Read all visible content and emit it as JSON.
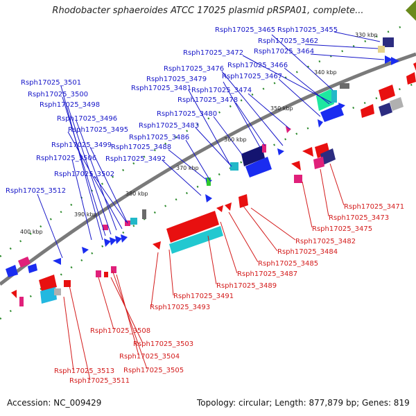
{
  "title": "Rhodobacter sphaeroides ATCC 17025 plasmid pRSPA01, complete...",
  "footer": {
    "accession": "Accession: NC_009429",
    "summary": "Topology: circular; Length: 877,879 bp; Genes: 819"
  },
  "kbp_ticks": [
    "330 kbp",
    "340 kbp",
    "350 kbp",
    "360 kbp",
    "370 kbp",
    "380 kbp",
    "390 kbp",
    "400 kbp"
  ],
  "labels_top": [
    "Rsph17025_3455",
    "Rsph17025_3462",
    "Rsph17025_3464",
    "Rsph17025_3465",
    "Rsph17025_3466",
    "Rsph17025_3467",
    "Rsph17025_3472",
    "Rsph17025_3474",
    "Rsph17025_3476",
    "Rsph17025_3478",
    "Rsph17025_3479",
    "Rsph17025_3480",
    "Rsph17025_3481",
    "Rsph17025_3483",
    "Rsph17025_3486",
    "Rsph17025_3488",
    "Rsph17025_3492",
    "Rsph17025_3495",
    "Rsph17025_3496",
    "Rsph17025_3498",
    "Rsph17025_3499",
    "Rsph17025_3500",
    "Rsph17025_3501",
    "Rsph17025_3502",
    "Rsph17025_3506",
    "Rsph17025_3512"
  ],
  "labels_bottom": [
    "Rsph17025_3471",
    "Rsph17025_3473",
    "Rsph17025_3475",
    "Rsph17025_3482",
    "Rsph17025_3484",
    "Rsph17025_3485",
    "Rsph17025_3487",
    "Rsph17025_3489",
    "Rsph17025_3491",
    "Rsph17025_3493",
    "Rsph17025_3508",
    "Rsph17025_3503",
    "Rsph17025_3504",
    "Rsph17025_3505",
    "Rsph17025_3513",
    "Rsph17025_3511"
  ],
  "colors": {
    "forward_label": "#1515c8",
    "reverse_label": "#d31a1a",
    "backbone": "#8a8a8a",
    "forward_gene": "#0a1ee8",
    "reverse_gene": "#e81010"
  }
}
